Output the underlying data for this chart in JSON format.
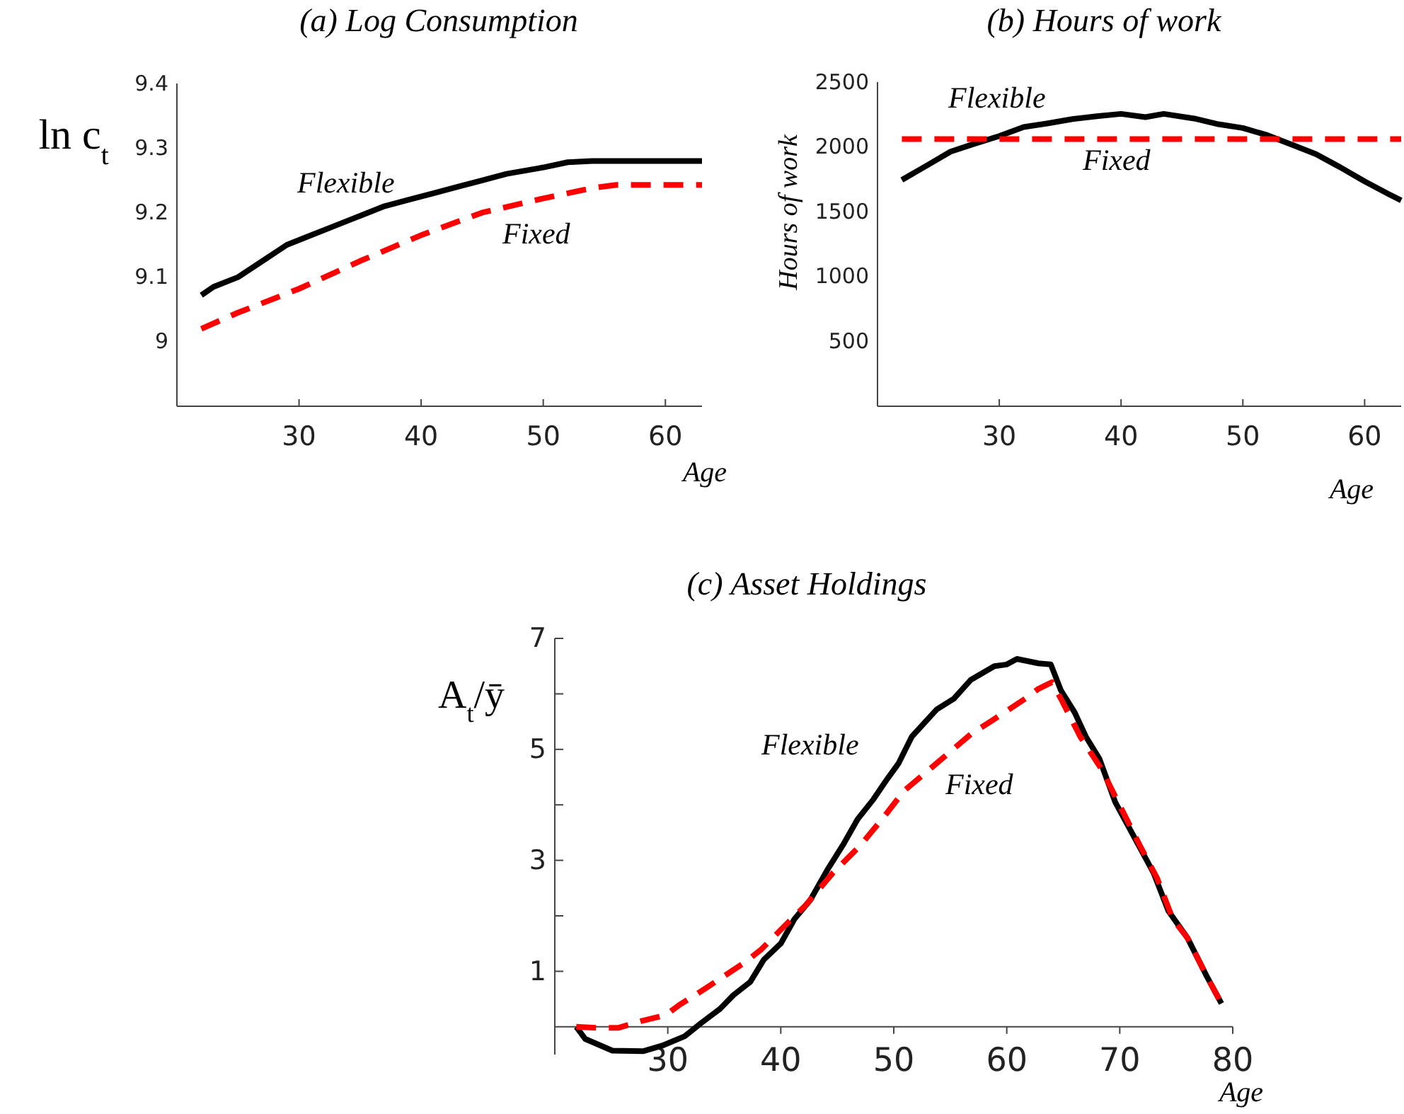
{
  "chart_data": [
    {
      "type": "line",
      "title": "(a) Log Consumption",
      "xlabel": "Age",
      "ylabel": "ln c$_{t}$",
      "xlim": [
        20,
        63
      ],
      "xticks": [
        30,
        40,
        50,
        60
      ],
      "ylim": [
        8.9,
        9.4
      ],
      "yticks": [
        9,
        9.1,
        9.2,
        9.3,
        9.4
      ],
      "series": [
        {
          "name": "Flexible",
          "color": "#000000",
          "line_style": "solid",
          "x": [
            22,
            23,
            25,
            27,
            29,
            31,
            33,
            35,
            37,
            39,
            41,
            43,
            45,
            47,
            50,
            52,
            54,
            63
          ],
          "values": [
            9.072,
            9.085,
            9.1,
            9.125,
            9.15,
            9.165,
            9.18,
            9.195,
            9.21,
            9.22,
            9.23,
            9.24,
            9.25,
            9.26,
            9.27,
            9.278,
            9.28,
            9.28
          ]
        },
        {
          "name": "Fixed",
          "color": "#ff0000",
          "line_style": "dashed",
          "x": [
            22,
            25,
            30,
            35,
            40,
            45,
            50,
            54,
            56,
            63
          ],
          "values": [
            9.02,
            9.045,
            9.082,
            9.125,
            9.165,
            9.2,
            9.222,
            9.238,
            9.243,
            9.243
          ]
        }
      ]
    },
    {
      "type": "line",
      "title": "(b) Hours of work",
      "xlabel": "Age",
      "ylabel": "Hours of work",
      "xlim": [
        20,
        63
      ],
      "xticks": [
        30,
        40,
        50,
        60
      ],
      "ylim": [
        0,
        2500
      ],
      "yticks": [
        500,
        1000,
        1500,
        2000,
        2500
      ],
      "series": [
        {
          "name": "Flexible",
          "color": "#000000",
          "line_style": "solid",
          "x": [
            22,
            24,
            26,
            28,
            30,
            32,
            34,
            36,
            38,
            40,
            42,
            43.5,
            46,
            48,
            50,
            52,
            54,
            56,
            58,
            60,
            62,
            63
          ],
          "values": [
            1745,
            1854,
            1964,
            2026,
            2084,
            2153,
            2182,
            2215,
            2237,
            2255,
            2230,
            2255,
            2219,
            2175,
            2146,
            2091,
            2018,
            1945,
            1843,
            1734,
            1635,
            1588
          ]
        },
        {
          "name": "Fixed",
          "color": "#ff0000",
          "line_style": "dashed",
          "x": [
            22,
            63
          ],
          "values": [
            2060,
            2060
          ]
        }
      ]
    },
    {
      "type": "line",
      "title": "(c) Asset Holdings",
      "xlabel": "Age",
      "ylabel": "A$_{t}$/ȳ",
      "xlim": [
        20,
        80
      ],
      "xticks": [
        30,
        40,
        50,
        60,
        70,
        80
      ],
      "ylim": [
        -0.5,
        7
      ],
      "yticks": [
        1,
        {
          "value": 2,
          "label": null
        },
        3,
        {
          "value": 4,
          "label": null
        },
        5,
        {
          "value": 6,
          "label": null
        },
        7
      ],
      "series": [
        {
          "name": "Flexible",
          "color": "#000000",
          "line_style": "solid",
          "x": [
            21.9,
            22.7,
            25.1,
            27.8,
            29.5,
            31.5,
            32.9,
            34.6,
            35.8,
            37.3,
            38.5,
            40,
            41.2,
            42.6,
            44.1,
            45.6,
            46.8,
            48.2,
            49.5,
            50.4,
            51.6,
            53.8,
            55.3,
            56.8,
            58.9,
            60,
            60.9,
            62.8,
            63.9,
            64.8,
            66,
            67,
            68.2,
            69.6,
            71.3,
            73,
            74.3,
            76,
            77.7,
            79
          ],
          "values": [
            0,
            -0.22,
            -0.43,
            -0.44,
            -0.34,
            -0.17,
            0.06,
            0.32,
            0.57,
            0.81,
            1.21,
            1.5,
            1.94,
            2.28,
            2.82,
            3.31,
            3.74,
            4.1,
            4.49,
            4.74,
            5.23,
            5.72,
            5.91,
            6.25,
            6.5,
            6.53,
            6.63,
            6.55,
            6.53,
            6.06,
            5.67,
            5.23,
            4.83,
            4.05,
            3.41,
            2.77,
            2.09,
            1.6,
            0.91,
            0.42
          ]
        },
        {
          "name": "Fixed",
          "color": "#ff0000",
          "line_style": "dashed",
          "x": [
            21.9,
            23.9,
            25.6,
            27.6,
            29.8,
            31,
            33.4,
            36.8,
            38.3,
            40.2,
            42.2,
            44.6,
            47,
            49,
            50.9,
            53.8,
            56.8,
            58.7,
            60.2,
            61.6,
            62.8,
            64,
            64.8,
            66.5,
            68.4,
            70.1,
            71.8,
            73.3,
            74.7,
            76,
            77.7,
            79
          ],
          "values": [
            0,
            -0.02,
            -0.02,
            0.1,
            0.21,
            0.39,
            0.7,
            1.16,
            1.4,
            1.79,
            2.19,
            2.77,
            3.26,
            3.75,
            4.25,
            4.75,
            5.27,
            5.52,
            5.72,
            5.91,
            6.09,
            6.21,
            5.91,
            5.23,
            4.64,
            3.95,
            3.26,
            2.68,
            1.94,
            1.6,
            0.91,
            0.42
          ]
        }
      ]
    }
  ]
}
